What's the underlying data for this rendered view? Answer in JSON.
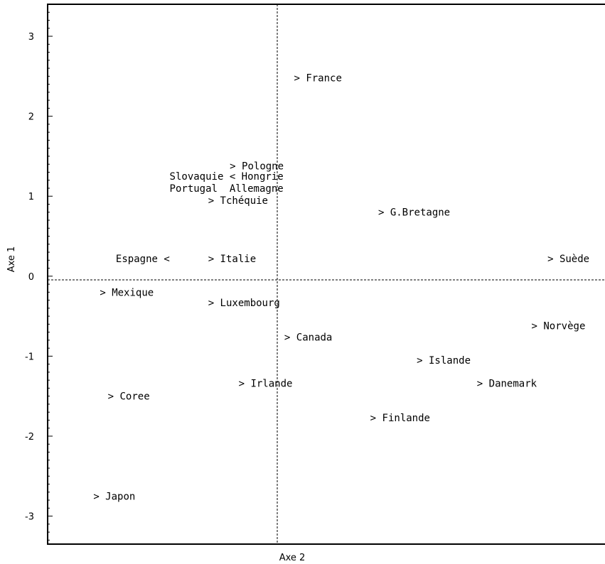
{
  "chart_data": {
    "type": "scatter",
    "title": "",
    "xlabel": "Axe 2",
    "ylabel": "Axe 1",
    "xlim": [
      -2.9,
      4.1
    ],
    "ylim": [
      -3.35,
      3.4
    ],
    "yticks": [
      3,
      2,
      1,
      0,
      -1,
      -2,
      -3
    ],
    "ytick_labels": [
      "3",
      "2",
      "1",
      "0",
      "-1",
      "-2",
      "-3"
    ],
    "reference_lines": {
      "x": 0,
      "y": 0,
      "style": "dashed"
    },
    "grid": false,
    "points": [
      {
        "x": 0.17,
        "y": 2.48,
        "label": "> France"
      },
      {
        "x": -0.63,
        "y": 1.38,
        "label": "> Pologne"
      },
      {
        "x": -1.38,
        "y": 1.25,
        "label": "Slovaquie < Hongrie"
      },
      {
        "x": -1.38,
        "y": 1.1,
        "label": "Portugal  Allemagne"
      },
      {
        "x": -0.9,
        "y": 0.95,
        "label": "> Tchéquie"
      },
      {
        "x": 1.22,
        "y": 0.8,
        "label": "> G.Bretagne"
      },
      {
        "x": -2.05,
        "y": 0.22,
        "label": "Espagne <"
      },
      {
        "x": -0.9,
        "y": 0.22,
        "label": "> Italie"
      },
      {
        "x": 3.33,
        "y": 0.22,
        "label": "> Suède"
      },
      {
        "x": -2.25,
        "y": -0.2,
        "label": "> Mexique"
      },
      {
        "x": -0.9,
        "y": -0.33,
        "label": "> Luxembourg"
      },
      {
        "x": 3.13,
        "y": -0.62,
        "label": "> Norvège"
      },
      {
        "x": 0.05,
        "y": -0.76,
        "label": "> Canada"
      },
      {
        "x": 1.7,
        "y": -1.05,
        "label": "> Islande"
      },
      {
        "x": -0.52,
        "y": -1.34,
        "label": "> Irlande"
      },
      {
        "x": 2.45,
        "y": -1.34,
        "label": "> Danemark"
      },
      {
        "x": -2.15,
        "y": -1.5,
        "label": "> Coree"
      },
      {
        "x": 1.12,
        "y": -1.77,
        "label": "> Finlande"
      },
      {
        "x": -2.33,
        "y": -2.75,
        "label": "> Japon"
      }
    ]
  }
}
